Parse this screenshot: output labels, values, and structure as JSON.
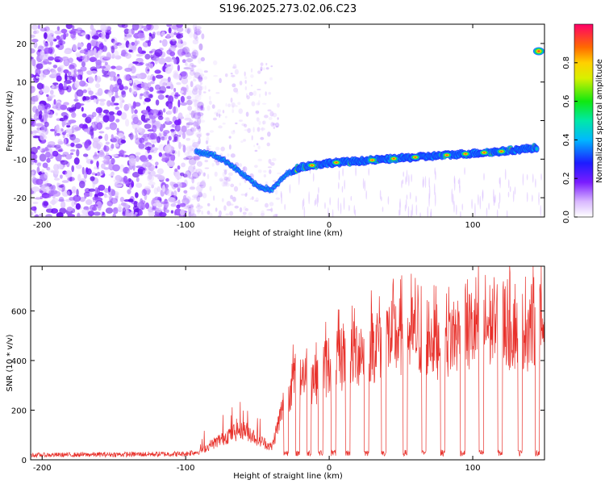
{
  "title": "S196.2025.273.02.06.C23",
  "chart_data": [
    {
      "type": "heatmap",
      "name": "spectrogram",
      "xlabel": "Height of straight line (km)",
      "ylabel": "Frequency (Hz)",
      "xlim": [
        -208,
        150
      ],
      "ylim": [
        -25,
        25
      ],
      "xticks": [
        -200,
        -100,
        0,
        100
      ],
      "yticks": [
        -20,
        -10,
        0,
        10,
        20
      ],
      "colorbar": {
        "label": "Normalized spectral amplitude",
        "range": [
          0,
          1
        ],
        "ticks": [
          0.0,
          0.2,
          0.4,
          0.6,
          0.8
        ]
      },
      "ridge": [
        {
          "x": -93,
          "y": -8
        },
        {
          "x": -80,
          "y": -9
        },
        {
          "x": -70,
          "y": -11
        },
        {
          "x": -60,
          "y": -14
        },
        {
          "x": -50,
          "y": -17
        },
        {
          "x": -40,
          "y": -18
        },
        {
          "x": -30,
          "y": -14
        },
        {
          "x": -20,
          "y": -12
        },
        {
          "x": 0,
          "y": -11
        },
        {
          "x": 20,
          "y": -10.5
        },
        {
          "x": 40,
          "y": -10
        },
        {
          "x": 60,
          "y": -9.5
        },
        {
          "x": 80,
          "y": -9
        },
        {
          "x": 100,
          "y": -8.5
        },
        {
          "x": 120,
          "y": -8
        },
        {
          "x": 145,
          "y": -7
        }
      ],
      "upper_feature": {
        "x": 146,
        "y": 18
      }
    },
    {
      "type": "line",
      "name": "snr",
      "xlabel": "Height of straight line (km)",
      "ylabel": "SNR (10 * v/v)",
      "xlim": [
        -208,
        150
      ],
      "ylim": [
        0,
        780
      ],
      "xticks": [
        -200,
        -100,
        0,
        100
      ],
      "yticks": [
        0,
        200,
        400,
        600
      ],
      "color": "#e8302a",
      "envelope": [
        {
          "x": -208,
          "y": 20
        },
        {
          "x": -100,
          "y": 25
        },
        {
          "x": -90,
          "y": 40
        },
        {
          "x": -80,
          "y": 80
        },
        {
          "x": -70,
          "y": 120
        },
        {
          "x": -60,
          "y": 150
        },
        {
          "x": -50,
          "y": 100
        },
        {
          "x": -40,
          "y": 60
        },
        {
          "x": -28,
          "y": 350
        },
        {
          "x": -20,
          "y": 420
        },
        {
          "x": -10,
          "y": 400
        },
        {
          "x": 0,
          "y": 460
        },
        {
          "x": 20,
          "y": 520
        },
        {
          "x": 40,
          "y": 580
        },
        {
          "x": 60,
          "y": 600
        },
        {
          "x": 80,
          "y": 580
        },
        {
          "x": 100,
          "y": 620
        },
        {
          "x": 120,
          "y": 650
        },
        {
          "x": 150,
          "y": 640
        }
      ],
      "dropouts_x": [
        -30,
        -22,
        -14,
        -6,
        3,
        13,
        26,
        38,
        53,
        66,
        79,
        93,
        106,
        119,
        133,
        145
      ]
    }
  ]
}
